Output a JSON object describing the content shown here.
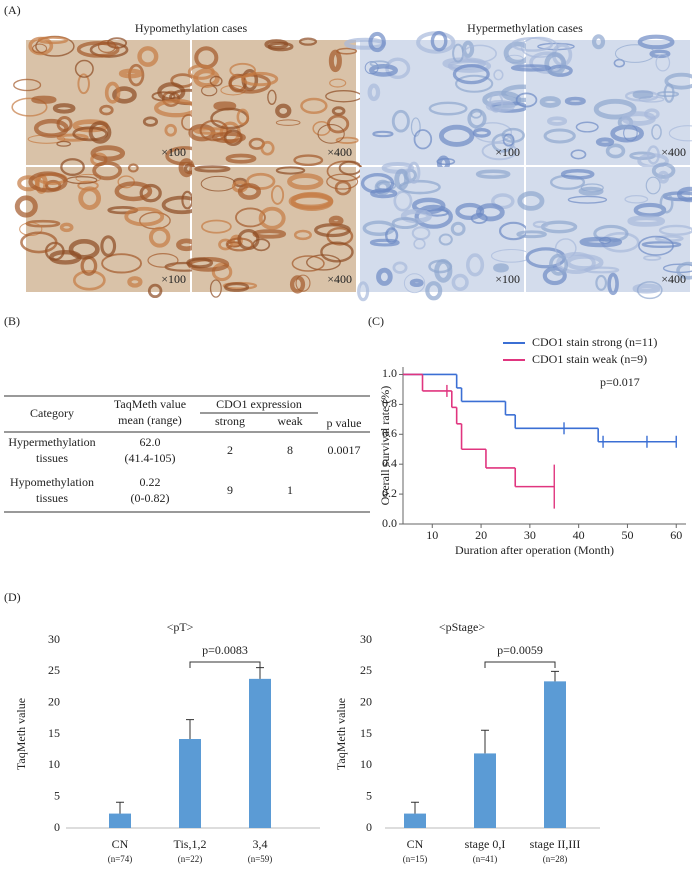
{
  "panel_labels": [
    "(A)",
    "(B)",
    "(C)",
    "(D)"
  ],
  "panel_a": {
    "groups": [
      {
        "title": "Hypomethylation  cases",
        "magnifications": [
          "×100",
          "×400",
          "×100",
          "×400"
        ]
      },
      {
        "title": "Hypermethylation  cases",
        "magnifications": [
          "×100",
          "×400",
          "×100",
          "×400"
        ]
      }
    ]
  },
  "table": {
    "header": {
      "category": "Category",
      "taqmeth": [
        "TaqMeth value",
        "mean (range)"
      ],
      "expression": "CDO1 expression",
      "strong": "strong",
      "weak": "weak",
      "p": "p value"
    },
    "rows": [
      {
        "category": [
          "Hypermethylation",
          "tissues"
        ],
        "mean": "62.0",
        "range": "(41.4-105)",
        "strong": "2",
        "weak": "8",
        "p": "0.0017"
      },
      {
        "category": [
          "Hypomethylation",
          "tissues"
        ],
        "mean": "0.22",
        "range": "(0-0.82)",
        "strong": "9",
        "weak": "1"
      }
    ]
  },
  "chart_data": [
    {
      "type": "step",
      "ylabel": "Overall survival rate (%)",
      "xlabel": "Duration after operation (Month)",
      "annotation": "p=0.017",
      "xlim": [
        4,
        62
      ],
      "xticks": [
        10,
        20,
        30,
        40,
        50,
        60
      ],
      "ylim": [
        0,
        1.05
      ],
      "yticks": [
        {
          "value": 0,
          "label": "0.0"
        },
        0.2,
        0.4,
        0.6,
        0.8,
        {
          "value": 1,
          "label": "1.0"
        }
      ],
      "series": [
        {
          "name": "CDO1  stain strong (n=11)",
          "color": "#3b6fd4",
          "x": [
            4,
            15,
            16,
            25,
            27,
            44,
            60
          ],
          "values": [
            1.0,
            0.91,
            0.82,
            0.73,
            0.64,
            0.55,
            0.55
          ],
          "censored": {
            "x": [
              37,
              45,
              54,
              60
            ],
            "values": [
              0.64,
              0.55,
              0.55,
              0.55
            ]
          }
        },
        {
          "name": "CDO1  stain weak (n=9)",
          "color": "#e0357f",
          "x": [
            4,
            8,
            14,
            15,
            16,
            21,
            27,
            35
          ],
          "values": [
            1.0,
            0.89,
            0.78,
            0.67,
            0.5,
            0.375,
            0.25,
            0.25
          ],
          "censored": {
            "x": [
              13,
              35
            ],
            "values": [
              0.89,
              0.25
            ]
          }
        }
      ]
    },
    {
      "type": "bar",
      "title": "<pT>",
      "ylabel": "TaqMeth value",
      "color": "#5b9bd5",
      "categories": [
        "CN",
        "Tis,1,2",
        "3,4"
      ],
      "counts": [
        "(n=74)",
        "(n=22)",
        "(n=59)"
      ],
      "values": [
        2.3,
        14.2,
        23.8
      ],
      "errors": [
        1.8,
        3.1,
        1.8
      ],
      "ylim": [
        0,
        30
      ],
      "yticks": [
        0,
        5,
        10,
        15,
        20,
        25,
        30
      ],
      "comparison": {
        "between": [
          1,
          2
        ],
        "label": "p=0.0083"
      }
    },
    {
      "type": "bar",
      "title": "<pStage>",
      "ylabel": "TaqMeth value",
      "color": "#5b9bd5",
      "categories": [
        "CN",
        "stage 0,I",
        "stage II,III"
      ],
      "counts": [
        "(n=15)",
        "(n=41)",
        "(n=28)"
      ],
      "values": [
        2.3,
        11.9,
        23.4
      ],
      "errors": [
        1.8,
        3.7,
        1.6
      ],
      "ylim": [
        0,
        30
      ],
      "yticks": [
        0,
        5,
        10,
        15,
        20,
        25,
        30
      ],
      "comparison": {
        "between": [
          1,
          2
        ],
        "label": "p=0.0059"
      }
    }
  ]
}
